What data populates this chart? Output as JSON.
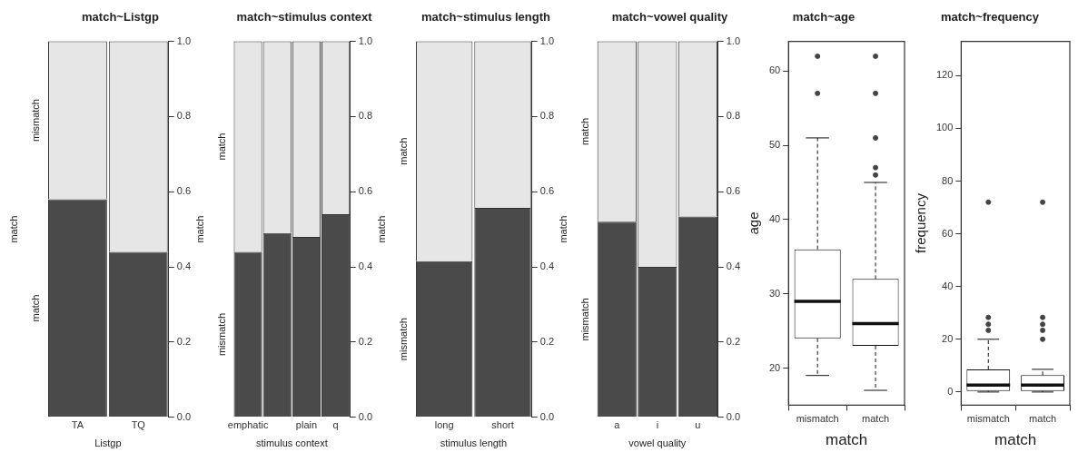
{
  "chart_data": [
    {
      "type": "bar",
      "stacked": true,
      "title": "match~Listgp",
      "xlabel": "Listgp",
      "ylabel": "match",
      "categories": [
        "TA",
        "TQ"
      ],
      "series": [
        {
          "name": "match",
          "color": "#4a4a4a",
          "values": [
            0.58,
            0.44
          ]
        },
        {
          "name": "mismatch",
          "color": "#e6e6e6",
          "values": [
            0.42,
            0.56
          ]
        }
      ],
      "ylim": [
        0,
        1
      ],
      "yticks": [
        {
          "value": 0,
          "label": "0.0"
        },
        {
          "value": 0.2,
          "label": "0.2"
        },
        {
          "value": 0.4,
          "label": "0.4"
        },
        {
          "value": 0.6,
          "label": "0.6"
        },
        {
          "value": 0.8,
          "label": "0.8"
        },
        {
          "value": 1,
          "label": "1.0"
        }
      ],
      "grid": false,
      "legend": false
    },
    {
      "type": "bar",
      "stacked": true,
      "title": "match~stimulus context",
      "xlabel": "stimulus context",
      "ylabel": "match",
      "categories": [
        "emphatic",
        null,
        "plain",
        "q"
      ],
      "series": [
        {
          "name": "mismatch",
          "color": "#4a4a4a",
          "values": [
            0.44,
            0.49,
            0.48,
            0.54
          ]
        },
        {
          "name": "match",
          "color": "#e6e6e6",
          "values": [
            0.56,
            0.51,
            0.52,
            0.46
          ]
        }
      ],
      "ylim": [
        0,
        1
      ],
      "yticks": [
        {
          "value": 0,
          "label": "0.0"
        },
        {
          "value": 0.2,
          "label": "0.2"
        },
        {
          "value": 0.4,
          "label": "0.4"
        },
        {
          "value": 0.6,
          "label": "0.6"
        },
        {
          "value": 0.8,
          "label": "0.8"
        },
        {
          "value": 1,
          "label": "1.0"
        }
      ],
      "grid": false,
      "legend": false
    },
    {
      "type": "bar",
      "stacked": true,
      "title": "match~stimulus length",
      "xlabel": "stimulus length",
      "ylabel": "match",
      "categories": [
        "long",
        "short"
      ],
      "series": [
        {
          "name": "mismatch",
          "color": "#4a4a4a",
          "values": [
            0.415,
            0.557
          ]
        },
        {
          "name": "match",
          "color": "#e6e6e6",
          "values": [
            0.585,
            0.443
          ]
        }
      ],
      "ylim": [
        0,
        1
      ],
      "yticks": [
        {
          "value": 0,
          "label": "0.0"
        },
        {
          "value": 0.2,
          "label": "0.2"
        },
        {
          "value": 0.4,
          "label": "0.4"
        },
        {
          "value": 0.6,
          "label": "0.6"
        },
        {
          "value": 0.8,
          "label": "0.8"
        },
        {
          "value": 1,
          "label": "1.0"
        }
      ],
      "grid": false,
      "legend": false
    },
    {
      "type": "bar",
      "stacked": true,
      "title": "match~vowel quality",
      "xlabel": "vowel quality",
      "ylabel": "match",
      "categories": [
        "a",
        "i",
        "u"
      ],
      "series": [
        {
          "name": "mismatch",
          "color": "#4a4a4a",
          "values": [
            0.52,
            0.4,
            0.534
          ]
        },
        {
          "name": "match",
          "color": "#e6e6e6",
          "values": [
            0.48,
            0.6,
            0.466
          ]
        }
      ],
      "ylim": [
        0,
        1
      ],
      "yticks": [
        {
          "value": 0,
          "label": "0.0"
        },
        {
          "value": 0.2,
          "label": "0.2"
        },
        {
          "value": 0.4,
          "label": "0.4"
        },
        {
          "value": 0.6,
          "label": "0.6"
        },
        {
          "value": 0.8,
          "label": "0.8"
        },
        {
          "value": 1,
          "label": "1.0"
        }
      ],
      "grid": false,
      "legend": false
    },
    {
      "type": "box",
      "title": "match~age",
      "xlabel": "match",
      "ylabel": "age",
      "categories": [
        "mismatch",
        "match"
      ],
      "boxes": [
        {
          "low": 19,
          "q1": 24,
          "median": 29,
          "q3": 36,
          "high": 51,
          "outliers": [
            57,
            62
          ]
        },
        {
          "low": 17,
          "q1": 23,
          "median": 26,
          "q3": 32,
          "high": 45,
          "outliers": [
            46,
            47,
            51,
            57,
            62
          ]
        }
      ],
      "ylim": [
        15,
        64
      ],
      "yticks": [
        20,
        30,
        40,
        50,
        60
      ],
      "grid": false,
      "legend": false
    },
    {
      "type": "box",
      "title": "match~frequency",
      "xlabel": "match",
      "ylabel": "frequency",
      "categories": [
        "mismatch",
        "match"
      ],
      "boxes": [
        {
          "low": 0,
          "q1": 0.4,
          "median": 2.6,
          "q3": 8.6,
          "high": 20,
          "outliers": [
            23.4,
            25.7,
            28.3,
            72
          ]
        },
        {
          "low": 0,
          "q1": 0.4,
          "median": 2.6,
          "q3": 6.4,
          "high": 8.6,
          "outliers": [
            20,
            23.4,
            25.7,
            28.3,
            72
          ]
        }
      ],
      "ylim": [
        -5,
        133
      ],
      "yticks": [
        0,
        20,
        40,
        60,
        80,
        100,
        120
      ],
      "grid": false,
      "legend": false
    }
  ]
}
